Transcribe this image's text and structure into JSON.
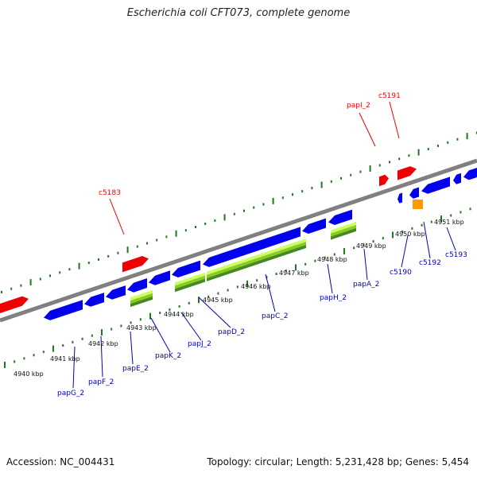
{
  "title": "Escherichia coli CFT073, complete genome",
  "footer": {
    "accession": "Accession: NC_004431",
    "summary": "Topology: circular; Length: 5,231,428 bp; Genes: 5,454"
  },
  "colors": {
    "backbone": "#808080",
    "forward_gene": "#ee0000",
    "reverse_gene": "#0000ee",
    "other_feature": "#ff9900",
    "domain_light": "#ccff66",
    "domain_mid": "#88cc22",
    "domain_dark": "#448822",
    "ticks": "#227722",
    "upper_label": "#ee0000",
    "lower_label": "#0000bb"
  },
  "tick_labels": [
    "4940 kbp",
    "4941 kbp",
    "4942 kbp",
    "4943 kbp",
    "4944 kbp",
    "4945 kbp",
    "4946 kbp",
    "4947 kbp",
    "4948 kbp",
    "4949 kbp",
    "4950 kbp",
    "4951 kbp"
  ],
  "upper_labels": [
    "c5183",
    "papI_2",
    "c5191"
  ],
  "lower_labels": [
    "papG_2",
    "papF_2",
    "papE_2",
    "papK_2",
    "papJ_2",
    "papD_2",
    "papC_2",
    "papH_2",
    "papA_2",
    "c5190",
    "c5192",
    "c5193"
  ]
}
